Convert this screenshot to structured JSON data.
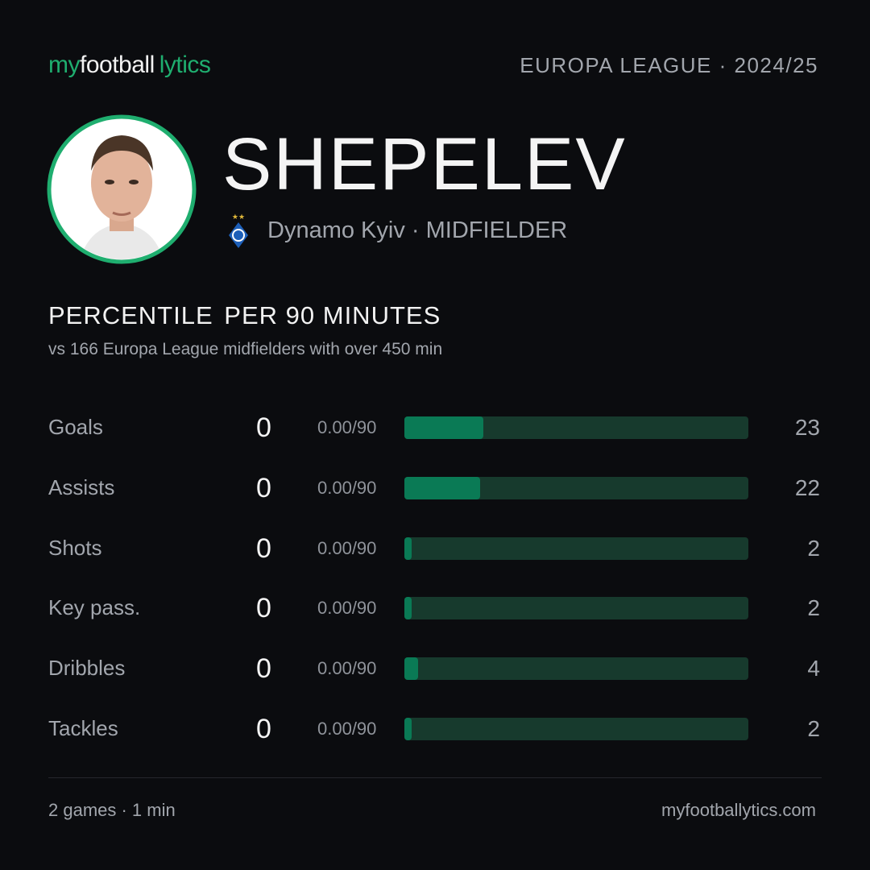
{
  "header": {
    "logo": [
      "my",
      "football",
      "lytics"
    ],
    "competition": "EUROPA LEAGUE · 2024/25"
  },
  "player": {
    "name": "SHEPELEV",
    "club_line": "Dynamo Kyiv · MIDFIELDER"
  },
  "section": {
    "title": "PERCENTILE",
    "title_suffix": "PER 90 MINUTES",
    "subtitle": "vs 166 Europa League midfielders",
    "subtitle_suffix": "with over 450 min"
  },
  "stats": {
    "xlim": [
      0,
      100
    ],
    "rows": [
      {
        "label": "Goals",
        "value": 0,
        "per90": "0.00/90",
        "percentile": 23
      },
      {
        "label": "Assists",
        "value": 0,
        "per90": "0.00/90",
        "percentile": 22
      },
      {
        "label": "Shots",
        "value": 0,
        "per90": "0.00/90",
        "percentile": 2
      },
      {
        "label": "Key pass.",
        "value": 0,
        "per90": "0.00/90",
        "percentile": 2
      },
      {
        "label": "Dribbles",
        "value": 0,
        "per90": "0.00/90",
        "percentile": 4
      },
      {
        "label": "Tackles",
        "value": 0,
        "per90": "0.00/90",
        "percentile": 2
      }
    ]
  },
  "footer": {
    "left": "2 games · 1 min",
    "right": "myfootballytics.com"
  }
}
